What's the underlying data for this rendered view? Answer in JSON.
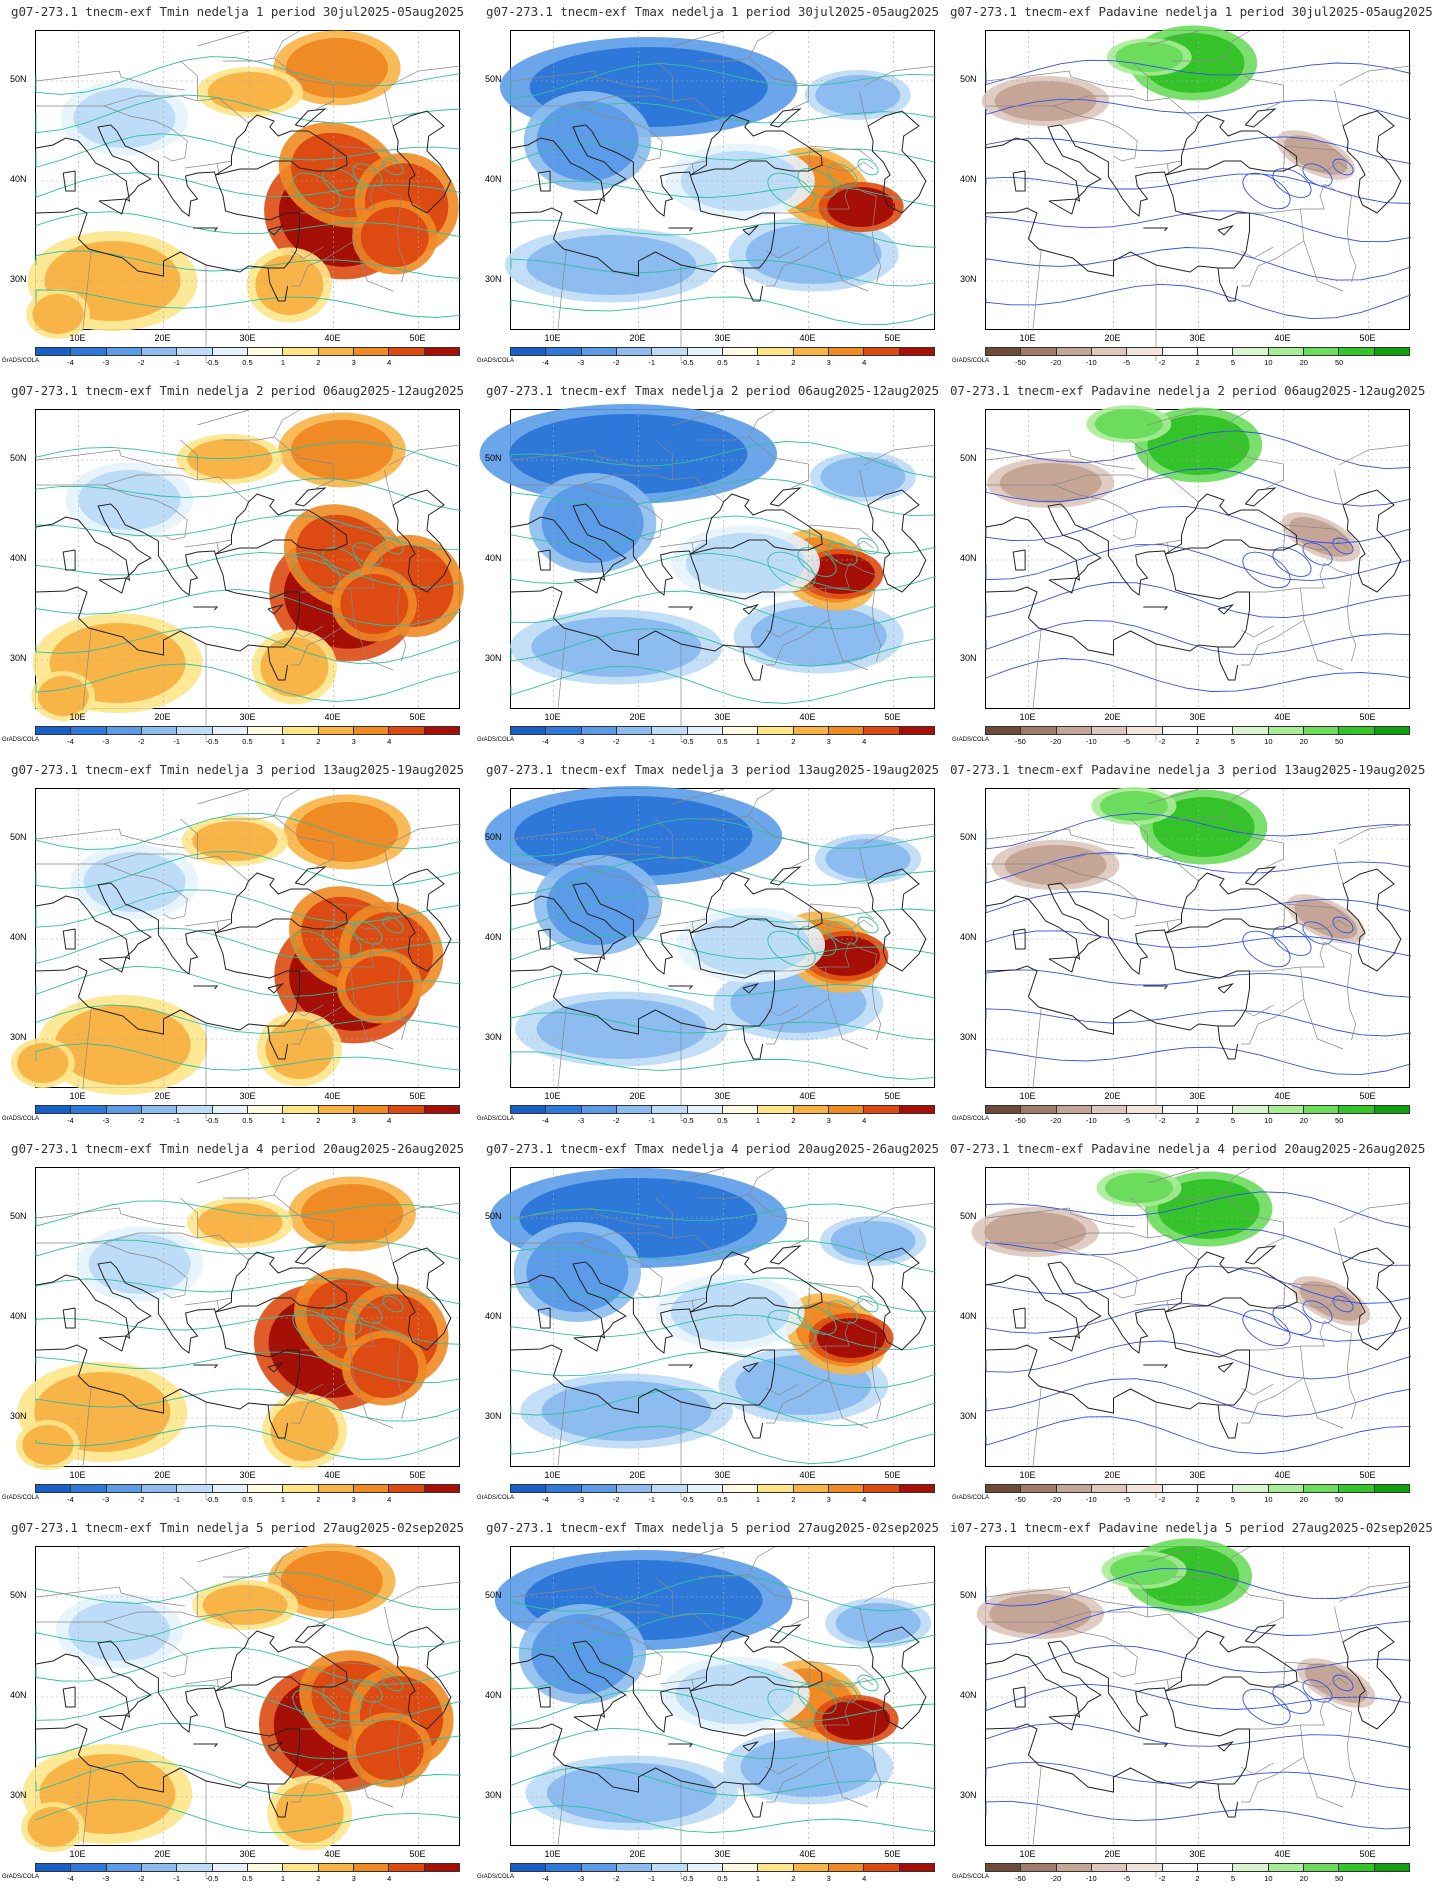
{
  "axes": {
    "y_labels": [
      "50N",
      "40N",
      "30N"
    ],
    "x_labels": [
      "10E",
      "20E",
      "30E",
      "40E",
      "50E"
    ]
  },
  "grads_label": "GrADS/COLA",
  "temperature_scale": {
    "labels": [
      "-4",
      "-3",
      "-2",
      "-1",
      "-0.5",
      "0.5",
      "1",
      "2",
      "3",
      "4"
    ],
    "colors": [
      "#1660c8",
      "#2e78d9",
      "#5b9be8",
      "#8cbcf0",
      "#bddcf7",
      "#e6f3fc",
      "#fffbe0",
      "#fde68a",
      "#f8b446",
      "#f08a24",
      "#dd4b12",
      "#a50f05"
    ]
  },
  "precip_scale": {
    "labels": [
      "-50",
      "-20",
      "-10",
      "-5",
      "-2",
      "2",
      "5",
      "10",
      "20",
      "50"
    ],
    "colors": [
      "#6e4a38",
      "#a07b68",
      "#c5a596",
      "#ddc7bc",
      "#f1e4dc",
      "#ffffff",
      "#ffffff",
      "#d8f5d0",
      "#a8ec98",
      "#6cdc5c",
      "#34c42a",
      "#12a010"
    ]
  },
  "rows": [
    {
      "panels": [
        {
          "title": "g07-273.1 tnecm-exf Tmin nedelja 1 period 30jul2025-05aug2025",
          "type": "tmin"
        },
        {
          "title": "g07-273.1 tnecm-exf Tmax nedelja 1 period 30jul2025-05aug2025",
          "type": "tmax"
        },
        {
          "title": "g07-273.1 tnecm-exf Padavine nedelja 1 period 30jul2025-05aug2025",
          "type": "precip"
        }
      ]
    },
    {
      "panels": [
        {
          "title": "g07-273.1 tnecm-exf Tmin nedelja 2 period 06aug2025-12aug2025",
          "type": "tmin"
        },
        {
          "title": "g07-273.1 tnecm-exf Tmax nedelja 2 period 06aug2025-12aug2025",
          "type": "tmax"
        },
        {
          "title": "07-273.1 tnecm-exf Padavine nedelja 2 period 06aug2025-12aug2025",
          "type": "precip"
        }
      ]
    },
    {
      "panels": [
        {
          "title": "g07-273.1 tnecm-exf Tmin nedelja 3 period 13aug2025-19aug2025",
          "type": "tmin"
        },
        {
          "title": "g07-273.1 tnecm-exf Tmax nedelja 3 period 13aug2025-19aug2025",
          "type": "tmax"
        },
        {
          "title": "07-273.1 tnecm-exf Padavine nedelja 3 period 13aug2025-19aug2025",
          "type": "precip"
        }
      ]
    },
    {
      "panels": [
        {
          "title": "g07-273.1 tnecm-exf Tmin nedelja 4 period 20aug2025-26aug2025",
          "type": "tmin"
        },
        {
          "title": "g07-273.1 tnecm-exf Tmax nedelja 4 period 20aug2025-26aug2025",
          "type": "tmax"
        },
        {
          "title": "07-273.1 tnecm-exf Padavine nedelja 4 period 20aug2025-26aug2025",
          "type": "precip"
        }
      ]
    },
    {
      "panels": [
        {
          "title": "g07-273.1 tnecm-exf Tmin nedelja 5 period 27aug2025-02sep2025",
          "type": "tmin"
        },
        {
          "title": "g07-273.1 tnecm-exf Tmax nedelja 5 period 27aug2025-02sep2025",
          "type": "tmax"
        },
        {
          "title": "i07-273.1 tnecm-exf Padavine nedelja 5 period 27aug2025-02sep2025",
          "type": "precip"
        }
      ]
    }
  ]
}
